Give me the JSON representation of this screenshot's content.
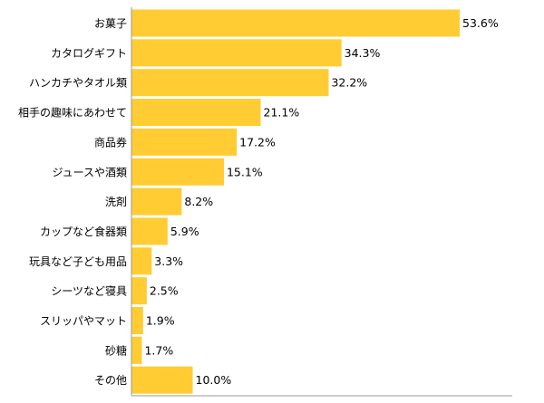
{
  "chart_data": {
    "type": "bar",
    "orientation": "horizontal",
    "categories": [
      "お菓子",
      "カタログギフト",
      "ハンカチやタオル類",
      "相手の趣味にあわせて",
      "商品券",
      "ジュースや酒類",
      "洗剤",
      "カップなど食器類",
      "玩具など子ども用品",
      "シーツなど寝具",
      "スリッパやマット",
      "砂糖",
      "その他"
    ],
    "values": [
      53.6,
      34.3,
      32.2,
      21.1,
      17.2,
      15.1,
      8.2,
      5.9,
      3.3,
      2.5,
      1.9,
      1.7,
      10.0
    ],
    "value_labels": [
      "53.6%",
      "34.3%",
      "32.2%",
      "21.1%",
      "17.2%",
      "15.1%",
      "8.2%",
      "5.9%",
      "3.3%",
      "2.5%",
      "1.9%",
      "1.7%",
      "10.0%"
    ],
    "xlim": [
      0,
      100
    ],
    "grid": false,
    "legend": "none",
    "bar_color": "#FFCC33",
    "axis_color": "#999999"
  }
}
